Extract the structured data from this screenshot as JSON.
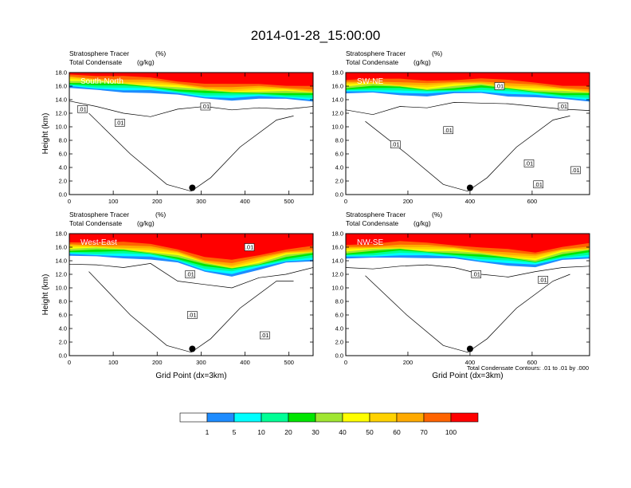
{
  "page": {
    "title": "2014-01-28_15:00:00"
  },
  "colors": {
    "bins": [
      "#ffffff",
      "#1e8cff",
      "#00ffff",
      "#00ff96",
      "#00e600",
      "#a0e632",
      "#ffff00",
      "#ffd200",
      "#ffaa00",
      "#ff6400",
      "#ff0000"
    ]
  },
  "chart_data": [
    {
      "type": "contour",
      "panel_label": "South-North",
      "subtitle_left_1": "Stratosphere Tracer",
      "subtitle_right_1": "(%)",
      "subtitle_left_2": "Total Condensate",
      "subtitle_right_2": "(g/kg)",
      "ylabel": "Height (km)",
      "xlabel": "",
      "xlim": [
        0,
        555
      ],
      "ylim": [
        0,
        18
      ],
      "xticks": [
        "0",
        "100",
        "200",
        "300",
        "400",
        "500"
      ],
      "xtick_values": [
        0,
        100,
        200,
        300,
        400,
        500
      ],
      "yticks": [
        "0.0",
        "2.0",
        "4.0",
        "6.0",
        "8.0",
        "10.0",
        "12.0",
        "14.0",
        "16.0",
        "18.0"
      ],
      "contour_labels": [
        ".01",
        ".01",
        ".01"
      ],
      "contour_label_pos": [
        [
          30,
          12.6
        ],
        [
          115,
          10.6
        ],
        [
          310,
          13.0
        ]
      ],
      "marker": [
        280,
        1.0
      ],
      "tracer_base": [
        15.6,
        15.4,
        15.2,
        15.0,
        14.6,
        14.2,
        14.0,
        14.1,
        14.0,
        13.8
      ],
      "condensate_top": [
        13.8,
        13.0,
        12.0,
        11.5,
        12.6,
        13.0,
        12.5,
        12.8,
        12.6,
        13.0
      ]
    },
    {
      "type": "contour",
      "panel_label": "SW-NE",
      "subtitle_left_1": "Stratosphere Tracer",
      "subtitle_right_1": "(%)",
      "subtitle_left_2": "Total Condensate",
      "subtitle_right_2": "(g/kg)",
      "ylabel": "",
      "xlabel": "",
      "xlim": [
        0,
        785
      ],
      "ylim": [
        0,
        18
      ],
      "xticks": [
        "0",
        "200",
        "400",
        "600"
      ],
      "xtick_values": [
        0,
        200,
        400,
        600
      ],
      "yticks": [
        "0.0",
        "2.0",
        "4.0",
        "6.0",
        "8.0",
        "10.0",
        "12.0",
        "14.0",
        "16.0",
        "18.0"
      ],
      "contour_labels": [
        ".01",
        ".01",
        ".01",
        ".01",
        ".01",
        ".01",
        ".01"
      ],
      "contour_label_pos": [
        [
          160,
          7.4
        ],
        [
          330,
          9.5
        ],
        [
          495,
          16.0
        ],
        [
          700,
          13.0
        ],
        [
          590,
          4.6
        ],
        [
          620,
          1.5
        ],
        [
          740,
          3.6
        ]
      ],
      "marker": [
        400,
        1.0
      ],
      "tracer_base": [
        14.8,
        15.0,
        14.8,
        14.5,
        14.8,
        15.0,
        14.6,
        14.3,
        14.0,
        13.8
      ],
      "condensate_top": [
        12.5,
        11.8,
        13.0,
        12.8,
        13.6,
        13.5,
        13.4,
        13.0,
        12.6,
        12.4
      ]
    },
    {
      "type": "contour",
      "panel_label": "West-East",
      "subtitle_left_1": "Stratosphere Tracer",
      "subtitle_right_1": "(%)",
      "subtitle_left_2": "Total Condensate",
      "subtitle_right_2": "(g/kg)",
      "ylabel": "Height (km)",
      "xlabel": "Grid Point (dx=3km)",
      "xlim": [
        0,
        555
      ],
      "ylim": [
        0,
        18
      ],
      "xticks": [
        "0",
        "100",
        "200",
        "300",
        "400",
        "500"
      ],
      "xtick_values": [
        0,
        100,
        200,
        300,
        400,
        500
      ],
      "yticks": [
        "0.0",
        "2.0",
        "4.0",
        "6.0",
        "8.0",
        "10.0",
        "12.0",
        "14.0",
        "16.0",
        "18.0"
      ],
      "contour_labels": [
        ".01",
        ".01",
        ".01",
        ".01"
      ],
      "contour_label_pos": [
        [
          280,
          6.0
        ],
        [
          410,
          16.0
        ],
        [
          445,
          3.0
        ],
        [
          275,
          12.0
        ]
      ],
      "marker": [
        280,
        1.0
      ],
      "tracer_base": [
        14.6,
        14.6,
        14.5,
        14.2,
        13.6,
        12.4,
        11.8,
        12.6,
        13.6,
        14.0
      ],
      "condensate_top": [
        13.5,
        13.4,
        13.0,
        13.6,
        11.0,
        10.5,
        10.0,
        11.5,
        12.0,
        13.0
      ]
    },
    {
      "type": "contour",
      "panel_label": "NW-SE",
      "subtitle_left_1": "Stratosphere Tracer",
      "subtitle_right_1": "(%)",
      "subtitle_left_2": "Total Condensate",
      "subtitle_right_2": "(g/kg)",
      "ylabel": "",
      "xlabel": "Grid Point (dx=3km)",
      "xlim": [
        0,
        785
      ],
      "ylim": [
        0,
        18
      ],
      "xticks": [
        "0",
        "200",
        "400",
        "600"
      ],
      "xtick_values": [
        0,
        200,
        400,
        600
      ],
      "yticks": [
        "0.0",
        "2.0",
        "4.0",
        "6.0",
        "8.0",
        "10.0",
        "12.0",
        "14.0",
        "16.0",
        "18.0"
      ],
      "contour_labels": [
        ".01",
        ".01"
      ],
      "contour_label_pos": [
        [
          420,
          12.0
        ],
        [
          635,
          11.2
        ]
      ],
      "marker": [
        400,
        1.0
      ],
      "tracer_base": [
        14.2,
        14.4,
        14.6,
        14.4,
        14.2,
        13.8,
        13.4,
        13.0,
        14.0,
        14.4
      ],
      "condensate_top": [
        13.0,
        12.8,
        13.2,
        13.4,
        13.0,
        12.0,
        11.6,
        12.4,
        13.0,
        13.2
      ]
    }
  ],
  "footnote": "Total Condensate Contours: .01 to .01 by .000",
  "colorbar": {
    "labels": [
      "1",
      "5",
      "10",
      "20",
      "30",
      "40",
      "50",
      "60",
      "70",
      "100"
    ]
  }
}
